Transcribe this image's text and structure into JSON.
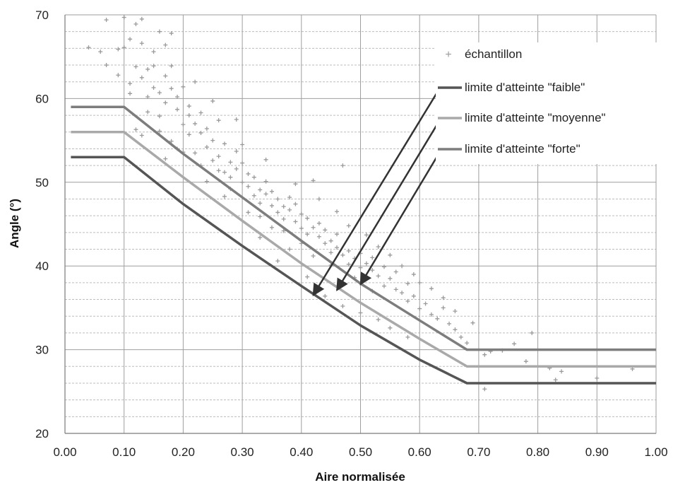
{
  "chart_data": {
    "type": "line",
    "title": "",
    "xlabel": "Aire normalisée",
    "ylabel": "Angle (°)",
    "xlim": [
      0,
      1.0
    ],
    "ylim": [
      20,
      70
    ],
    "x_ticks": [
      "0.00",
      "0.10",
      "0.20",
      "0.30",
      "0.40",
      "0.50",
      "0.60",
      "0.70",
      "0.80",
      "0.90",
      "1.00"
    ],
    "y_ticks": [
      "20",
      "30",
      "40",
      "50",
      "60",
      "70"
    ],
    "grid": true,
    "legend_position": "top-right",
    "colors": {
      "faible": "#555555",
      "moyenne": "#a9a9a9",
      "forte": "#7d7d7d",
      "sample": "#9a9a9a",
      "arrow": "#333333"
    },
    "series": [
      {
        "name": "échantillon",
        "kind": "scatter",
        "points": [
          [
            0.04,
            66.1
          ],
          [
            0.06,
            65.6
          ],
          [
            0.07,
            64.0
          ],
          [
            0.07,
            69.4
          ],
          [
            0.09,
            62.8
          ],
          [
            0.09,
            65.9
          ],
          [
            0.1,
            69.7
          ],
          [
            0.1,
            66.1
          ],
          [
            0.11,
            61.8
          ],
          [
            0.11,
            60.6
          ],
          [
            0.11,
            67.1
          ],
          [
            0.12,
            63.8
          ],
          [
            0.12,
            68.9
          ],
          [
            0.13,
            62.5
          ],
          [
            0.13,
            66.6
          ],
          [
            0.13,
            69.5
          ],
          [
            0.14,
            63.5
          ],
          [
            0.14,
            60.2
          ],
          [
            0.14,
            58.4
          ],
          [
            0.15,
            63.9
          ],
          [
            0.15,
            65.6
          ],
          [
            0.15,
            61.3
          ],
          [
            0.16,
            60.7
          ],
          [
            0.16,
            57.9
          ],
          [
            0.16,
            68.0
          ],
          [
            0.17,
            62.7
          ],
          [
            0.17,
            59.5
          ],
          [
            0.17,
            66.4
          ],
          [
            0.18,
            61.2
          ],
          [
            0.18,
            63.9
          ],
          [
            0.18,
            67.8
          ],
          [
            0.19,
            58.7
          ],
          [
            0.19,
            60.2
          ],
          [
            0.2,
            56.9
          ],
          [
            0.2,
            61.4
          ],
          [
            0.21,
            58.0
          ],
          [
            0.21,
            55.7
          ],
          [
            0.21,
            59.1
          ],
          [
            0.22,
            57.0
          ],
          [
            0.22,
            53.5
          ],
          [
            0.23,
            55.9
          ],
          [
            0.23,
            58.3
          ],
          [
            0.24,
            54.2
          ],
          [
            0.24,
            56.4
          ],
          [
            0.25,
            52.6
          ],
          [
            0.25,
            55.0
          ],
          [
            0.26,
            53.1
          ],
          [
            0.26,
            57.4
          ],
          [
            0.27,
            51.2
          ],
          [
            0.27,
            54.6
          ],
          [
            0.28,
            52.4
          ],
          [
            0.28,
            50.6
          ],
          [
            0.29,
            53.7
          ],
          [
            0.29,
            51.6
          ],
          [
            0.3,
            50.0
          ],
          [
            0.3,
            52.3
          ],
          [
            0.31,
            49.5
          ],
          [
            0.31,
            51.0
          ],
          [
            0.32,
            48.4
          ],
          [
            0.32,
            50.6
          ],
          [
            0.33,
            49.1
          ],
          [
            0.33,
            47.5
          ],
          [
            0.34,
            48.6
          ],
          [
            0.34,
            50.1
          ],
          [
            0.35,
            47.2
          ],
          [
            0.35,
            48.9
          ],
          [
            0.36,
            46.4
          ],
          [
            0.36,
            48.0
          ],
          [
            0.37,
            47.1
          ],
          [
            0.37,
            45.6
          ],
          [
            0.38,
            46.7
          ],
          [
            0.38,
            48.2
          ],
          [
            0.39,
            45.3
          ],
          [
            0.39,
            47.4
          ],
          [
            0.4,
            44.5
          ],
          [
            0.4,
            46.2
          ],
          [
            0.41,
            45.7
          ],
          [
            0.41,
            43.8
          ],
          [
            0.42,
            44.6
          ],
          [
            0.42,
            50.2
          ],
          [
            0.43,
            43.5
          ],
          [
            0.43,
            45.1
          ],
          [
            0.44,
            42.7
          ],
          [
            0.44,
            44.3
          ],
          [
            0.45,
            43.0
          ],
          [
            0.45,
            41.6
          ],
          [
            0.46,
            42.2
          ],
          [
            0.46,
            43.8
          ],
          [
            0.47,
            41.3
          ],
          [
            0.47,
            52.0
          ],
          [
            0.48,
            41.8
          ],
          [
            0.48,
            40.2
          ],
          [
            0.49,
            40.9
          ],
          [
            0.5,
            41.5
          ],
          [
            0.5,
            39.8
          ],
          [
            0.51,
            40.3
          ],
          [
            0.52,
            39.5
          ],
          [
            0.52,
            41.0
          ],
          [
            0.53,
            38.8
          ],
          [
            0.54,
            39.9
          ],
          [
            0.54,
            37.6
          ],
          [
            0.55,
            38.5
          ],
          [
            0.56,
            37.2
          ],
          [
            0.56,
            39.3
          ],
          [
            0.57,
            36.8
          ],
          [
            0.58,
            37.9
          ],
          [
            0.58,
            35.8
          ],
          [
            0.59,
            36.4
          ],
          [
            0.6,
            38.0
          ],
          [
            0.6,
            34.9
          ],
          [
            0.61,
            35.5
          ],
          [
            0.62,
            34.2
          ],
          [
            0.63,
            33.7
          ],
          [
            0.64,
            35.0
          ],
          [
            0.65,
            33.1
          ],
          [
            0.66,
            32.4
          ],
          [
            0.67,
            31.5
          ],
          [
            0.68,
            30.8
          ],
          [
            0.71,
            29.4
          ],
          [
            0.72,
            29.8
          ],
          [
            0.71,
            25.3
          ],
          [
            0.74,
            29.9
          ],
          [
            0.76,
            30.7
          ],
          [
            0.78,
            28.6
          ],
          [
            0.79,
            32.0
          ],
          [
            0.82,
            27.8
          ],
          [
            0.83,
            26.4
          ],
          [
            0.84,
            27.4
          ],
          [
            0.9,
            26.6
          ],
          [
            0.96,
            27.7
          ],
          [
            0.13,
            55.6
          ],
          [
            0.12,
            56.3
          ],
          [
            0.17,
            52.8
          ],
          [
            0.19,
            54.0
          ],
          [
            0.24,
            50.1
          ],
          [
            0.27,
            48.3
          ],
          [
            0.31,
            46.4
          ],
          [
            0.33,
            43.4
          ],
          [
            0.36,
            40.6
          ],
          [
            0.38,
            42.0
          ],
          [
            0.41,
            38.7
          ],
          [
            0.44,
            36.4
          ],
          [
            0.47,
            35.2
          ],
          [
            0.5,
            34.4
          ],
          [
            0.53,
            33.6
          ],
          [
            0.55,
            32.6
          ],
          [
            0.58,
            31.5
          ],
          [
            0.25,
            59.7
          ],
          [
            0.29,
            57.5
          ],
          [
            0.22,
            62.0
          ],
          [
            0.3,
            54.5
          ],
          [
            0.34,
            52.7
          ],
          [
            0.39,
            49.8
          ],
          [
            0.43,
            48.0
          ],
          [
            0.46,
            46.5
          ],
          [
            0.48,
            44.8
          ],
          [
            0.51,
            43.7
          ],
          [
            0.53,
            42.3
          ],
          [
            0.55,
            41.3
          ],
          [
            0.57,
            40.0
          ],
          [
            0.59,
            39.0
          ],
          [
            0.62,
            37.3
          ],
          [
            0.64,
            36.2
          ],
          [
            0.66,
            34.6
          ],
          [
            0.69,
            33.2
          ],
          [
            0.37,
            44.2
          ],
          [
            0.4,
            42.7
          ],
          [
            0.45,
            40.1
          ],
          [
            0.49,
            38.6
          ],
          [
            0.52,
            37.0
          ],
          [
            0.26,
            51.4
          ],
          [
            0.28,
            49.2
          ],
          [
            0.33,
            45.9
          ],
          [
            0.35,
            44.6
          ],
          [
            0.42,
            41.2
          ],
          [
            0.16,
            56.1
          ],
          [
            0.18,
            54.9
          ],
          [
            0.2,
            53.6
          ],
          [
            0.23,
            52.0
          ]
        ]
      },
      {
        "name": "limite d'atteinte \"faible\"",
        "kind": "line",
        "points": [
          [
            0.01,
            53
          ],
          [
            0.1,
            53
          ],
          [
            0.2,
            47.4
          ],
          [
            0.3,
            42.4
          ],
          [
            0.4,
            37.6
          ],
          [
            0.5,
            32.9
          ],
          [
            0.6,
            28.8
          ],
          [
            0.68,
            26
          ],
          [
            1.0,
            26
          ]
        ]
      },
      {
        "name": "limite d'atteinte \"moyenne\"",
        "kind": "line",
        "points": [
          [
            0.01,
            56
          ],
          [
            0.1,
            56
          ],
          [
            0.2,
            50.6
          ],
          [
            0.3,
            45.4
          ],
          [
            0.4,
            40.3
          ],
          [
            0.5,
            35.6
          ],
          [
            0.6,
            31.3
          ],
          [
            0.68,
            28
          ],
          [
            1.0,
            28
          ]
        ]
      },
      {
        "name": "limite d'atteinte \"forte\"",
        "kind": "line",
        "points": [
          [
            0.01,
            59
          ],
          [
            0.1,
            59
          ],
          [
            0.2,
            53.4
          ],
          [
            0.3,
            48.2
          ],
          [
            0.4,
            43.0
          ],
          [
            0.5,
            37.9
          ],
          [
            0.6,
            33.5
          ],
          [
            0.68,
            30
          ],
          [
            1.0,
            30
          ]
        ]
      }
    ],
    "annotations": {
      "arrows": [
        {
          "from": [
            0.645,
            62.5
          ],
          "to": [
            0.42,
            36.5
          ]
        },
        {
          "from": [
            0.645,
            58.7
          ],
          "to": [
            0.46,
            37.1
          ]
        },
        {
          "from": [
            0.645,
            54.9
          ],
          "to": [
            0.5,
            37.8
          ]
        }
      ]
    }
  }
}
